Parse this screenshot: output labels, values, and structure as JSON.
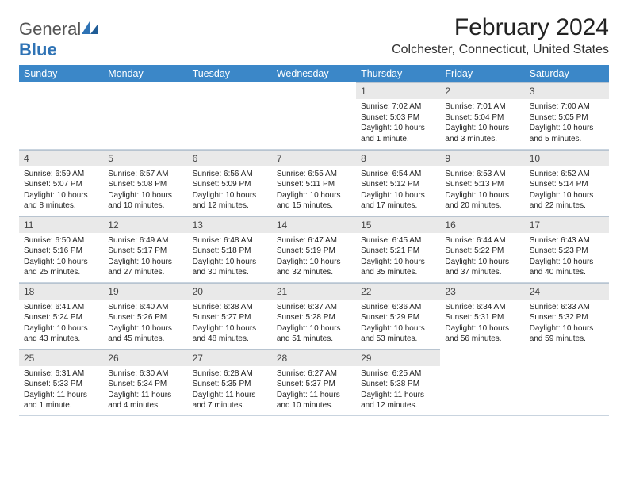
{
  "logo": {
    "general": "General",
    "blue": "Blue"
  },
  "header": {
    "month_title": "February 2024",
    "location": "Colchester, Connecticut, United States"
  },
  "colors": {
    "header_bg": "#3b87c8",
    "header_text": "#ffffff",
    "daynum_bg": "#e9e9e9",
    "border": "#c9d4df"
  },
  "day_headers": [
    "Sunday",
    "Monday",
    "Tuesday",
    "Wednesday",
    "Thursday",
    "Friday",
    "Saturday"
  ],
  "weeks": [
    [
      null,
      null,
      null,
      null,
      {
        "num": "1",
        "sunrise": "Sunrise: 7:02 AM",
        "sunset": "Sunset: 5:03 PM",
        "daylight": "Daylight: 10 hours and 1 minute."
      },
      {
        "num": "2",
        "sunrise": "Sunrise: 7:01 AM",
        "sunset": "Sunset: 5:04 PM",
        "daylight": "Daylight: 10 hours and 3 minutes."
      },
      {
        "num": "3",
        "sunrise": "Sunrise: 7:00 AM",
        "sunset": "Sunset: 5:05 PM",
        "daylight": "Daylight: 10 hours and 5 minutes."
      }
    ],
    [
      {
        "num": "4",
        "sunrise": "Sunrise: 6:59 AM",
        "sunset": "Sunset: 5:07 PM",
        "daylight": "Daylight: 10 hours and 8 minutes."
      },
      {
        "num": "5",
        "sunrise": "Sunrise: 6:57 AM",
        "sunset": "Sunset: 5:08 PM",
        "daylight": "Daylight: 10 hours and 10 minutes."
      },
      {
        "num": "6",
        "sunrise": "Sunrise: 6:56 AM",
        "sunset": "Sunset: 5:09 PM",
        "daylight": "Daylight: 10 hours and 12 minutes."
      },
      {
        "num": "7",
        "sunrise": "Sunrise: 6:55 AM",
        "sunset": "Sunset: 5:11 PM",
        "daylight": "Daylight: 10 hours and 15 minutes."
      },
      {
        "num": "8",
        "sunrise": "Sunrise: 6:54 AM",
        "sunset": "Sunset: 5:12 PM",
        "daylight": "Daylight: 10 hours and 17 minutes."
      },
      {
        "num": "9",
        "sunrise": "Sunrise: 6:53 AM",
        "sunset": "Sunset: 5:13 PM",
        "daylight": "Daylight: 10 hours and 20 minutes."
      },
      {
        "num": "10",
        "sunrise": "Sunrise: 6:52 AM",
        "sunset": "Sunset: 5:14 PM",
        "daylight": "Daylight: 10 hours and 22 minutes."
      }
    ],
    [
      {
        "num": "11",
        "sunrise": "Sunrise: 6:50 AM",
        "sunset": "Sunset: 5:16 PM",
        "daylight": "Daylight: 10 hours and 25 minutes."
      },
      {
        "num": "12",
        "sunrise": "Sunrise: 6:49 AM",
        "sunset": "Sunset: 5:17 PM",
        "daylight": "Daylight: 10 hours and 27 minutes."
      },
      {
        "num": "13",
        "sunrise": "Sunrise: 6:48 AM",
        "sunset": "Sunset: 5:18 PM",
        "daylight": "Daylight: 10 hours and 30 minutes."
      },
      {
        "num": "14",
        "sunrise": "Sunrise: 6:47 AM",
        "sunset": "Sunset: 5:19 PM",
        "daylight": "Daylight: 10 hours and 32 minutes."
      },
      {
        "num": "15",
        "sunrise": "Sunrise: 6:45 AM",
        "sunset": "Sunset: 5:21 PM",
        "daylight": "Daylight: 10 hours and 35 minutes."
      },
      {
        "num": "16",
        "sunrise": "Sunrise: 6:44 AM",
        "sunset": "Sunset: 5:22 PM",
        "daylight": "Daylight: 10 hours and 37 minutes."
      },
      {
        "num": "17",
        "sunrise": "Sunrise: 6:43 AM",
        "sunset": "Sunset: 5:23 PM",
        "daylight": "Daylight: 10 hours and 40 minutes."
      }
    ],
    [
      {
        "num": "18",
        "sunrise": "Sunrise: 6:41 AM",
        "sunset": "Sunset: 5:24 PM",
        "daylight": "Daylight: 10 hours and 43 minutes."
      },
      {
        "num": "19",
        "sunrise": "Sunrise: 6:40 AM",
        "sunset": "Sunset: 5:26 PM",
        "daylight": "Daylight: 10 hours and 45 minutes."
      },
      {
        "num": "20",
        "sunrise": "Sunrise: 6:38 AM",
        "sunset": "Sunset: 5:27 PM",
        "daylight": "Daylight: 10 hours and 48 minutes."
      },
      {
        "num": "21",
        "sunrise": "Sunrise: 6:37 AM",
        "sunset": "Sunset: 5:28 PM",
        "daylight": "Daylight: 10 hours and 51 minutes."
      },
      {
        "num": "22",
        "sunrise": "Sunrise: 6:36 AM",
        "sunset": "Sunset: 5:29 PM",
        "daylight": "Daylight: 10 hours and 53 minutes."
      },
      {
        "num": "23",
        "sunrise": "Sunrise: 6:34 AM",
        "sunset": "Sunset: 5:31 PM",
        "daylight": "Daylight: 10 hours and 56 minutes."
      },
      {
        "num": "24",
        "sunrise": "Sunrise: 6:33 AM",
        "sunset": "Sunset: 5:32 PM",
        "daylight": "Daylight: 10 hours and 59 minutes."
      }
    ],
    [
      {
        "num": "25",
        "sunrise": "Sunrise: 6:31 AM",
        "sunset": "Sunset: 5:33 PM",
        "daylight": "Daylight: 11 hours and 1 minute."
      },
      {
        "num": "26",
        "sunrise": "Sunrise: 6:30 AM",
        "sunset": "Sunset: 5:34 PM",
        "daylight": "Daylight: 11 hours and 4 minutes."
      },
      {
        "num": "27",
        "sunrise": "Sunrise: 6:28 AM",
        "sunset": "Sunset: 5:35 PM",
        "daylight": "Daylight: 11 hours and 7 minutes."
      },
      {
        "num": "28",
        "sunrise": "Sunrise: 6:27 AM",
        "sunset": "Sunset: 5:37 PM",
        "daylight": "Daylight: 11 hours and 10 minutes."
      },
      {
        "num": "29",
        "sunrise": "Sunrise: 6:25 AM",
        "sunset": "Sunset: 5:38 PM",
        "daylight": "Daylight: 11 hours and 12 minutes."
      },
      null,
      null
    ]
  ]
}
